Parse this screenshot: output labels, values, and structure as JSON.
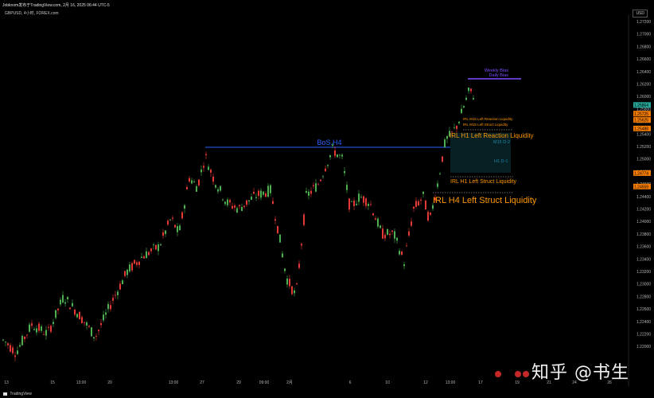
{
  "header": {
    "title": "Jobknom发布于TradingView.com, 2月 16, 2025 06:44 UTC-5",
    "symbol": "GBPUSD, 4小时, FOREX.com",
    "currency": "USD"
  },
  "price_axis": {
    "labels": [
      "1.27200",
      "1.27000",
      "1.26800",
      "1.26600",
      "1.26400",
      "1.26200",
      "1.26000",
      "1.25800",
      "1.25600",
      "1.25400",
      "1.25200",
      "1.25000",
      "1.24800",
      "1.24600",
      "1.24400",
      "1.24200",
      "1.24000",
      "1.23800",
      "1.23600",
      "1.23400",
      "1.23200",
      "1.23000",
      "1.22800",
      "1.22600",
      "1.22400",
      "1.22200",
      "1.22000"
    ],
    "badges": [
      {
        "text": "1.25864",
        "color": "#26a69a"
      },
      {
        "text": "1.25725",
        "color": "#f57c00"
      },
      {
        "text": "1.25625",
        "color": "#f57c00"
      },
      {
        "text": "1.25488",
        "color": "#f57c00"
      },
      {
        "text": "1.24774",
        "color": "#f57c00"
      },
      {
        "text": "1.24559",
        "color": "#f57c00"
      }
    ]
  },
  "time_axis": {
    "labels": [
      "13",
      "15",
      "13:00",
      "20",
      "13:00",
      "27",
      "29",
      "09:00",
      "2月",
      "6",
      "10",
      "12",
      "13:00",
      "17",
      "19",
      "21",
      "24",
      "26"
    ]
  },
  "annotations": {
    "weekly_bias": "Weekly Bias",
    "daily_bias": "Daily Bias",
    "bos": "BoS.H4",
    "m15_reaction": "IRL M15 Left Reaction Liquidity",
    "m15_struct": "IRL M15 Left Struct Liquidity",
    "h1_reaction": "IRL H1 Left Reaction Liquidity",
    "m15_d2": "M15 D-2",
    "h1_d1": "H1 D-1",
    "h1_struct": "IRL H1 Left Struct Liquidity",
    "h4_struct": "IRL H4 Left Struct Liquidity"
  },
  "colors": {
    "bull": "#4caf50",
    "bear": "#e53935",
    "bias": "#7c4dff",
    "bos": "#2962ff",
    "liquidity": "#ff9800",
    "zone": "#0b3b40"
  },
  "footer": {
    "brand": "TradingView",
    "watermark": "知乎 @书生"
  }
}
